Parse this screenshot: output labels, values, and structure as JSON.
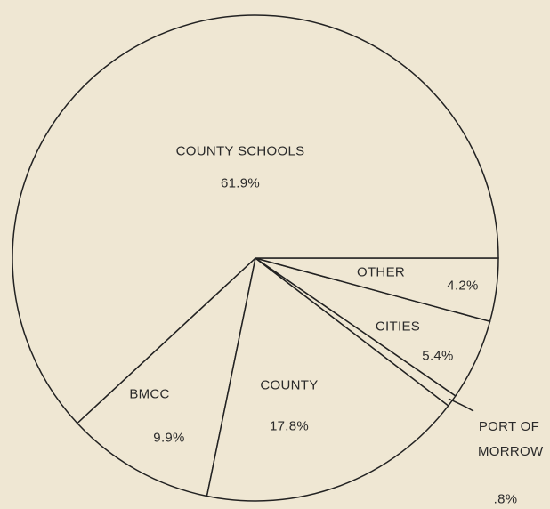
{
  "chart_data": {
    "type": "pie",
    "categories": [
      "COUNTY SCHOOLS",
      "OTHER",
      "CITIES",
      "PORT OF MORROW",
      "COUNTY",
      "BMCC"
    ],
    "values": [
      61.9,
      4.2,
      5.4,
      0.8,
      17.8,
      9.9
    ],
    "value_labels": [
      "61.9%",
      "4.2%",
      "5.4%",
      ".8%",
      "17.8%",
      "9.9%"
    ],
    "color": "#efe7d3"
  }
}
